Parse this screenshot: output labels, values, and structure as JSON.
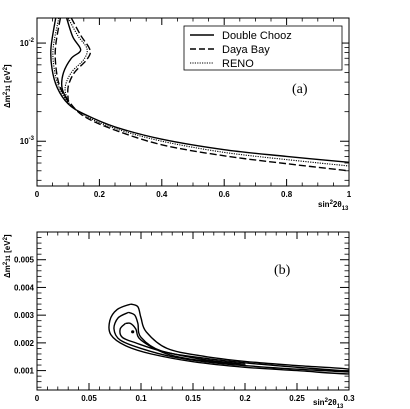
{
  "chart_data": [
    {
      "panel_label": "(a)",
      "type": "line",
      "xlabel": "sin²2θ₁₃",
      "ylabel": "Δm²₃₁ [eV²]",
      "xlim": [
        0,
        1
      ],
      "ylim": [
        0.00035,
        0.018
      ],
      "y_scale": "log",
      "x_ticks": [
        "0",
        "0.2",
        "0.4",
        "0.6",
        "0.8",
        "1"
      ],
      "y_ticks": [
        "10⁻²",
        "10⁻³"
      ],
      "legend_position": "top-right",
      "series": [
        {
          "name": "Double Chooz",
          "style": "solid",
          "points": [
            [
              0.06,
              0.018
            ],
            [
              0.045,
              0.009
            ],
            [
              0.048,
              0.0055
            ],
            [
              0.065,
              0.0035
            ],
            [
              0.1,
              0.0024
            ],
            [
              0.15,
              0.0019
            ],
            [
              0.25,
              0.0014
            ],
            [
              0.4,
              0.00105
            ],
            [
              0.6,
              0.00082
            ],
            [
              0.8,
              0.0007
            ],
            [
              1.0,
              0.00061
            ]
          ],
          "points_b": [
            [
              0.095,
              0.018
            ],
            [
              0.115,
              0.0115
            ],
            [
              0.14,
              0.0085
            ],
            [
              0.11,
              0.007
            ],
            [
              0.085,
              0.005
            ],
            [
              0.08,
              0.0035
            ],
            [
              0.1,
              0.0025
            ]
          ]
        },
        {
          "name": "Daya Bay",
          "style": "dashed",
          "points": [
            [
              0.075,
              0.018
            ],
            [
              0.06,
              0.0095
            ],
            [
              0.06,
              0.006
            ],
            [
              0.072,
              0.0037
            ],
            [
              0.1,
              0.0026
            ],
            [
              0.15,
              0.0018
            ],
            [
              0.25,
              0.0013
            ],
            [
              0.4,
              0.00092
            ],
            [
              0.6,
              0.00071
            ],
            [
              0.8,
              0.00059
            ],
            [
              1.0,
              0.0005
            ]
          ],
          "points_b": [
            [
              0.11,
              0.018
            ],
            [
              0.14,
              0.012
            ],
            [
              0.17,
              0.0085
            ],
            [
              0.16,
              0.0068
            ],
            [
              0.12,
              0.005
            ],
            [
              0.1,
              0.0036
            ],
            [
              0.1,
              0.0026
            ]
          ]
        },
        {
          "name": "RENO",
          "style": "dotted",
          "points": [
            [
              0.07,
              0.018
            ],
            [
              0.052,
              0.009
            ],
            [
              0.055,
              0.0055
            ],
            [
              0.07,
              0.0036
            ],
            [
              0.1,
              0.0025
            ],
            [
              0.15,
              0.00185
            ],
            [
              0.25,
              0.00135
            ],
            [
              0.4,
              0.001
            ],
            [
              0.6,
              0.00077
            ],
            [
              0.8,
              0.00065
            ],
            [
              1.0,
              0.00056
            ]
          ],
          "points_b": [
            [
              0.1,
              0.018
            ],
            [
              0.13,
              0.012
            ],
            [
              0.16,
              0.0088
            ],
            [
              0.15,
              0.0068
            ],
            [
              0.11,
              0.005
            ],
            [
              0.09,
              0.0035
            ],
            [
              0.1,
              0.0025
            ]
          ]
        }
      ]
    },
    {
      "panel_label": "(b)",
      "type": "line",
      "xlabel": "sin²2θ₁₃",
      "ylabel": "Δm²₃₁ [eV²]",
      "xlim": [
        0,
        0.3
      ],
      "ylim": [
        0.0003,
        0.006
      ],
      "y_scale": "linear",
      "x_ticks": [
        "0",
        "0.05",
        "0.1",
        "0.15",
        "0.2",
        "0.25",
        "0.3"
      ],
      "y_ticks": [
        "0.001",
        "0.002",
        "0.003",
        "0.004",
        "0.005"
      ],
      "best_fit": [
        0.092,
        0.0024
      ],
      "contours": [
        {
          "level": "inner",
          "points": [
            [
              0.085,
              0.0027
            ],
            [
              0.08,
              0.0025
            ],
            [
              0.082,
              0.0022
            ],
            [
              0.095,
              0.002
            ],
            [
              0.12,
              0.0017
            ],
            [
              0.16,
              0.0014
            ],
            [
              0.2,
              0.00123
            ],
            [
              0.16,
              0.00135
            ],
            [
              0.125,
              0.0016
            ],
            [
              0.1,
              0.0021
            ],
            [
              0.095,
              0.0025
            ],
            [
              0.09,
              0.0027
            ],
            [
              0.085,
              0.0027
            ]
          ]
        },
        {
          "level": "middle",
          "points": [
            [
              0.088,
              0.0031
            ],
            [
              0.078,
              0.0029
            ],
            [
              0.074,
              0.0025
            ],
            [
              0.08,
              0.0021
            ],
            [
              0.1,
              0.0018
            ],
            [
              0.13,
              0.0015
            ],
            [
              0.17,
              0.00128
            ],
            [
              0.21,
              0.00115
            ],
            [
              0.25,
              0.00105
            ],
            [
              0.3,
              0.00095
            ],
            [
              0.3,
              0.00098
            ],
            [
              0.25,
              0.00112
            ],
            [
              0.2,
              0.00128
            ],
            [
              0.16,
              0.00145
            ],
            [
              0.12,
              0.0017
            ],
            [
              0.1,
              0.0022
            ],
            [
              0.097,
              0.0027
            ],
            [
              0.094,
              0.003
            ],
            [
              0.088,
              0.0031
            ]
          ]
        },
        {
          "level": "outer",
          "points": [
            [
              0.09,
              0.0034
            ],
            [
              0.077,
              0.0032
            ],
            [
              0.07,
              0.0028
            ],
            [
              0.071,
              0.0023
            ],
            [
              0.085,
              0.0019
            ],
            [
              0.11,
              0.0016
            ],
            [
              0.15,
              0.00132
            ],
            [
              0.2,
              0.00112
            ],
            [
              0.25,
              0.001
            ],
            [
              0.3,
              0.00088
            ],
            [
              0.3,
              0.00105
            ],
            [
              0.25,
              0.00118
            ],
            [
              0.2,
              0.00133
            ],
            [
              0.16,
              0.00152
            ],
            [
              0.125,
              0.0018
            ],
            [
              0.105,
              0.0024
            ],
            [
              0.1,
              0.0029
            ],
            [
              0.097,
              0.0033
            ],
            [
              0.09,
              0.0034
            ]
          ]
        }
      ]
    }
  ]
}
